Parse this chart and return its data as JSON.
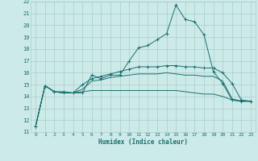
{
  "xlabel": "Humidex (Indice chaleur)",
  "background_color": "#cceae7",
  "grid_color": "#aacccc",
  "line_color": "#1a7070",
  "xlim": [
    -0.5,
    23.5
  ],
  "ylim": [
    11,
    22
  ],
  "xticks": [
    0,
    1,
    2,
    3,
    4,
    5,
    6,
    7,
    8,
    9,
    10,
    11,
    12,
    13,
    14,
    15,
    16,
    17,
    18,
    19,
    20,
    21,
    22,
    23
  ],
  "yticks": [
    11,
    12,
    13,
    14,
    15,
    16,
    17,
    18,
    19,
    20,
    21,
    22
  ],
  "series": [
    {
      "x": [
        0,
        1,
        2,
        3,
        4,
        5,
        6,
        7,
        8,
        9,
        10,
        11,
        12,
        13,
        14,
        15,
        16,
        17,
        18,
        19,
        20,
        21,
        22,
        23
      ],
      "y": [
        11.5,
        14.9,
        14.4,
        14.4,
        14.3,
        14.3,
        15.8,
        15.5,
        15.8,
        15.8,
        17.0,
        18.1,
        18.3,
        18.8,
        19.3,
        21.7,
        20.5,
        20.3,
        19.2,
        16.1,
        15.1,
        13.7,
        13.6,
        13.6
      ],
      "marker": true
    },
    {
      "x": [
        0,
        1,
        2,
        3,
        4,
        5,
        6,
        7,
        8,
        9,
        10,
        11,
        12,
        13,
        14,
        15,
        16,
        17,
        18,
        19,
        20,
        21,
        22,
        23
      ],
      "y": [
        11.5,
        14.9,
        14.4,
        14.3,
        14.3,
        15.0,
        15.5,
        15.7,
        15.9,
        16.1,
        16.3,
        16.5,
        16.5,
        16.5,
        16.6,
        16.6,
        16.5,
        16.5,
        16.4,
        16.4,
        16.0,
        15.1,
        13.7,
        13.6
      ],
      "marker": true
    },
    {
      "x": [
        0,
        1,
        2,
        3,
        4,
        5,
        6,
        7,
        8,
        9,
        10,
        11,
        12,
        13,
        14,
        15,
        16,
        17,
        18,
        19,
        20,
        21,
        22,
        23
      ],
      "y": [
        11.5,
        14.9,
        14.4,
        14.3,
        14.3,
        14.6,
        15.3,
        15.4,
        15.6,
        15.7,
        15.8,
        15.9,
        15.9,
        15.9,
        16.0,
        15.9,
        15.8,
        15.8,
        15.7,
        15.7,
        15.3,
        13.8,
        13.6,
        13.6
      ],
      "marker": false
    },
    {
      "x": [
        0,
        1,
        2,
        3,
        4,
        5,
        6,
        7,
        8,
        9,
        10,
        11,
        12,
        13,
        14,
        15,
        16,
        17,
        18,
        19,
        20,
        21,
        22,
        23
      ],
      "y": [
        11.5,
        14.9,
        14.4,
        14.3,
        14.3,
        14.4,
        14.5,
        14.5,
        14.5,
        14.5,
        14.5,
        14.5,
        14.5,
        14.5,
        14.5,
        14.5,
        14.4,
        14.3,
        14.2,
        14.2,
        14.0,
        13.7,
        13.6,
        13.6
      ],
      "marker": false
    }
  ]
}
